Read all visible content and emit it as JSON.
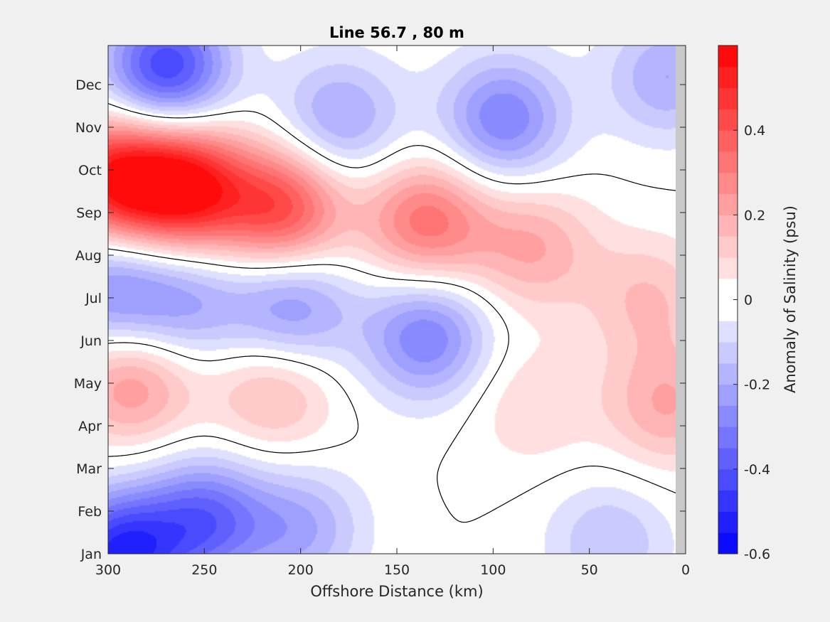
{
  "chart_data": {
    "type": "heatmap",
    "subtype": "filled-contour",
    "title": "Line 56.7 , 80 m",
    "xlabel": "Offshore Distance (km)",
    "ylabel": "",
    "xlim": [
      300,
      0
    ],
    "x_reversed": true,
    "x_ticks": [
      300,
      250,
      200,
      150,
      100,
      50,
      0
    ],
    "y_ticks": [
      "Jan",
      "Feb",
      "Mar",
      "Apr",
      "May",
      "Jun",
      "Jul",
      "Aug",
      "Sep",
      "Oct",
      "Nov",
      "Dec"
    ],
    "colorbar": {
      "label": "Anomaly of Salinity (psu)",
      "range": [
        -0.6,
        0.6
      ],
      "ticks": [
        -0.6,
        -0.4,
        -0.2,
        0,
        0.2,
        0.4
      ],
      "levels": 24,
      "low_color": "#0000ff",
      "mid_color": "#ffffff",
      "high_color": "#ff0000"
    },
    "zero_contour": true,
    "features": [
      {
        "x": 260,
        "month": 9.6,
        "value": 0.55
      },
      {
        "x": 298,
        "month": 9.8,
        "value": 0.5
      },
      {
        "x": 210,
        "month": 9.1,
        "value": 0.42
      },
      {
        "x": 135,
        "month": 8.8,
        "value": 0.33
      },
      {
        "x": 80,
        "month": 8.2,
        "value": 0.2
      },
      {
        "x": 20,
        "month": 7.0,
        "value": 0.15
      },
      {
        "x": 288,
        "month": 5.0,
        "value": 0.25
      },
      {
        "x": 215,
        "month": 4.8,
        "value": 0.18
      },
      {
        "x": 10,
        "month": 4.5,
        "value": 0.2
      },
      {
        "x": 80,
        "month": 4.5,
        "value": 0.1
      },
      {
        "x": 270,
        "month": 12.4,
        "value": -0.45
      },
      {
        "x": 180,
        "month": 11.2,
        "value": -0.22
      },
      {
        "x": 95,
        "month": 11.2,
        "value": -0.3
      },
      {
        "x": 10,
        "month": 12.2,
        "value": -0.2
      },
      {
        "x": 260,
        "month": 6.9,
        "value": -0.2
      },
      {
        "x": 205,
        "month": 6.8,
        "value": -0.26
      },
      {
        "x": 300,
        "month": 7.2,
        "value": -0.25
      },
      {
        "x": 135,
        "month": 6.1,
        "value": -0.3
      },
      {
        "x": 295,
        "month": 1.0,
        "value": -0.5
      },
      {
        "x": 250,
        "month": 1.8,
        "value": -0.35
      },
      {
        "x": 200,
        "month": 1.6,
        "value": -0.2
      },
      {
        "x": 40,
        "month": 1.3,
        "value": -0.15
      }
    ]
  }
}
